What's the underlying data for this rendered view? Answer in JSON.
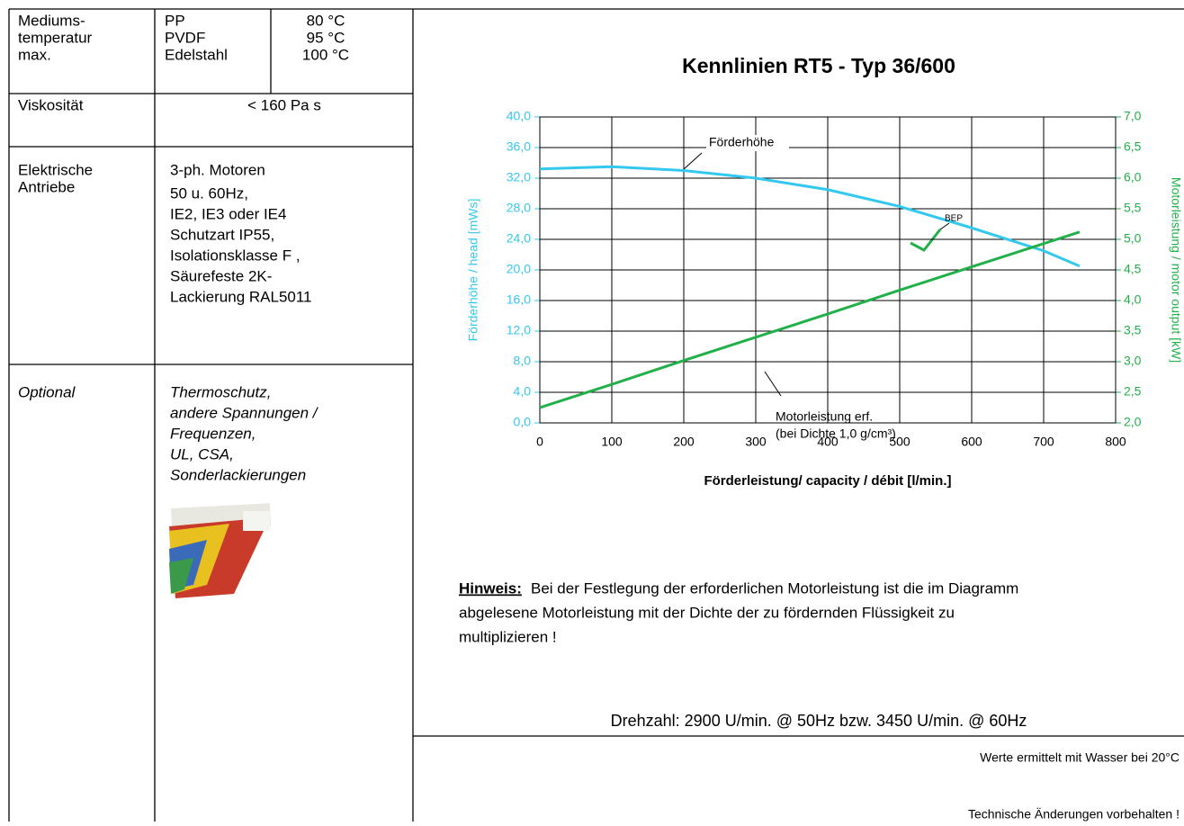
{
  "table": {
    "rows": [
      {
        "label": [
          "Mediums-",
          "temperatur",
          "max."
        ],
        "materials": [
          [
            "PP",
            "80 °C"
          ],
          [
            "PVDF",
            "95 °C"
          ],
          [
            "Edelstahl",
            "100 °C"
          ]
        ]
      },
      {
        "label": [
          "Viskosität"
        ],
        "value": [
          "< 160 Pa s"
        ]
      },
      {
        "label": [
          "Elektrische",
          "Antriebe"
        ],
        "value": [
          "3-ph. Motoren",
          "50 u. 60Hz,",
          "IE2, IE3 oder IE4",
          "Schutzart IP55,",
          "Isolationsklasse F ,",
          "Säurefeste 2K-",
          "Lackierung RAL5011"
        ]
      },
      {
        "label": [
          "Optional"
        ],
        "value": [
          "Thermoschutz,",
          "andere Spannungen /",
          "Frequenzen,",
          "UL, CSA,",
          "Sonderlackierungen"
        ]
      }
    ]
  },
  "chart_data": {
    "type": "line",
    "title": "Kennlinien  RT5  -  Typ 36/600",
    "x_label": "Förderleistung/ capacity / débit [l/min.]",
    "y_label": "Förderhöhe / head  [mWs]",
    "y2_label": "Motorleistung  / motor output [kW]",
    "x": [
      0,
      100,
      200,
      300,
      400,
      500,
      600,
      700,
      750
    ],
    "series": [
      {
        "name": "Förderhöhe",
        "color": "#33c8ee",
        "values": [
          33.2,
          33.5,
          33.0,
          32.0,
          30.5,
          28.3,
          25.5,
          22.5,
          20.5
        ]
      },
      {
        "name": "Motorleistung erf.",
        "color": "#22b04a",
        "axis": "y2",
        "values": [
          2.25,
          2.63,
          3.02,
          3.4,
          3.78,
          4.17,
          4.55,
          4.93,
          5.12
        ]
      }
    ],
    "annotations": [
      "(bei Dichte 1,0 g/cm³)",
      "BEP"
    ],
    "xlim": [
      0,
      800
    ],
    "xticks": [
      0,
      100,
      200,
      300,
      400,
      500,
      600,
      700,
      800
    ],
    "ylim": [
      0,
      40
    ],
    "yticks": [
      {
        "value": 0,
        "label": "0,0"
      },
      {
        "value": 4,
        "label": "4,0"
      },
      {
        "value": 8,
        "label": "8,0"
      },
      {
        "value": 12,
        "label": "12,0"
      },
      {
        "value": 16,
        "label": "16,0"
      },
      {
        "value": 20,
        "label": "20,0"
      },
      {
        "value": 24,
        "label": "24,0"
      },
      {
        "value": 28,
        "label": "28,0"
      },
      {
        "value": 32,
        "label": "32,0"
      },
      {
        "value": 36,
        "label": "36,0"
      },
      {
        "value": 40,
        "label": "40,0"
      }
    ],
    "y2lim": [
      2,
      7
    ],
    "y2ticks": [
      {
        "value": 2,
        "label": "2,0"
      },
      {
        "value": 2.5,
        "label": "2,5"
      },
      {
        "value": 3,
        "label": "3,0"
      },
      {
        "value": 3.5,
        "label": "3,5"
      },
      {
        "value": 4,
        "label": "4,0"
      },
      {
        "value": 4.5,
        "label": "4,5"
      },
      {
        "value": 5,
        "label": "5,0"
      },
      {
        "value": 5.5,
        "label": "5,5"
      },
      {
        "value": 6,
        "label": "6,0"
      },
      {
        "value": 6.5,
        "label": "6,5"
      },
      {
        "value": 7,
        "label": "7,0"
      }
    ],
    "grid": true
  },
  "note": {
    "label": "Hinweis:",
    "text": [
      "Bei der Festlegung der erforderlichen Motorleistung ist die im Diagramm",
      "abgelesene Motorleistung mit der Dichte der zu fördernden Flüssigkeit zu",
      "multiplizieren !"
    ]
  },
  "speed": "Drehzahl: 2900 U/min. @ 50Hz  bzw.  3450 U/min. @ 60Hz",
  "footer": [
    "Werte ermittelt mit Wasser bei 20°C",
    "Technische Änderungen vorbehalten !"
  ]
}
